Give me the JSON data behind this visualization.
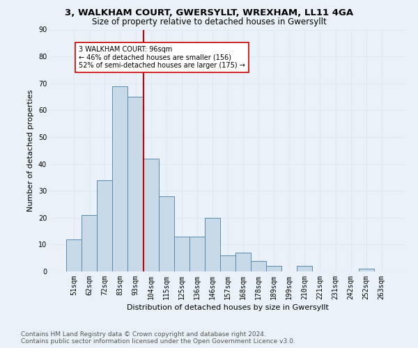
{
  "title1": "3, WALKHAM COURT, GWERSYLLT, WREXHAM, LL11 4GA",
  "title2": "Size of property relative to detached houses in Gwersyllt",
  "xlabel": "Distribution of detached houses by size in Gwersyllt",
  "ylabel": "Number of detached properties",
  "bar_labels": [
    "51sqm",
    "62sqm",
    "72sqm",
    "83sqm",
    "93sqm",
    "104sqm",
    "115sqm",
    "125sqm",
    "136sqm",
    "146sqm",
    "157sqm",
    "168sqm",
    "178sqm",
    "189sqm",
    "199sqm",
    "210sqm",
    "221sqm",
    "231sqm",
    "242sqm",
    "252sqm",
    "263sqm"
  ],
  "bar_values": [
    12,
    21,
    34,
    69,
    65,
    42,
    28,
    13,
    13,
    20,
    6,
    7,
    4,
    2,
    0,
    2,
    0,
    0,
    0,
    1,
    0
  ],
  "bar_color": "#c8d9e8",
  "bar_edge_color": "#5a8ab0",
  "vline_x": 4.5,
  "vline_color": "#cc0000",
  "annotation_text": "3 WALKHAM COURT: 96sqm\n← 46% of detached houses are smaller (156)\n52% of semi-detached houses are larger (175) →",
  "annotation_box_color": "#ffffff",
  "annotation_box_edge": "#cc0000",
  "ylim": [
    0,
    90
  ],
  "yticks": [
    0,
    10,
    20,
    30,
    40,
    50,
    60,
    70,
    80,
    90
  ],
  "grid_color": "#dde8f0",
  "bg_color": "#eaf1f8",
  "footer": "Contains HM Land Registry data © Crown copyright and database right 2024.\nContains public sector information licensed under the Open Government Licence v3.0.",
  "title1_fontsize": 9.5,
  "title2_fontsize": 8.5,
  "xlabel_fontsize": 8,
  "ylabel_fontsize": 8,
  "tick_fontsize": 7,
  "annot_fontsize": 7,
  "footer_fontsize": 6.5
}
